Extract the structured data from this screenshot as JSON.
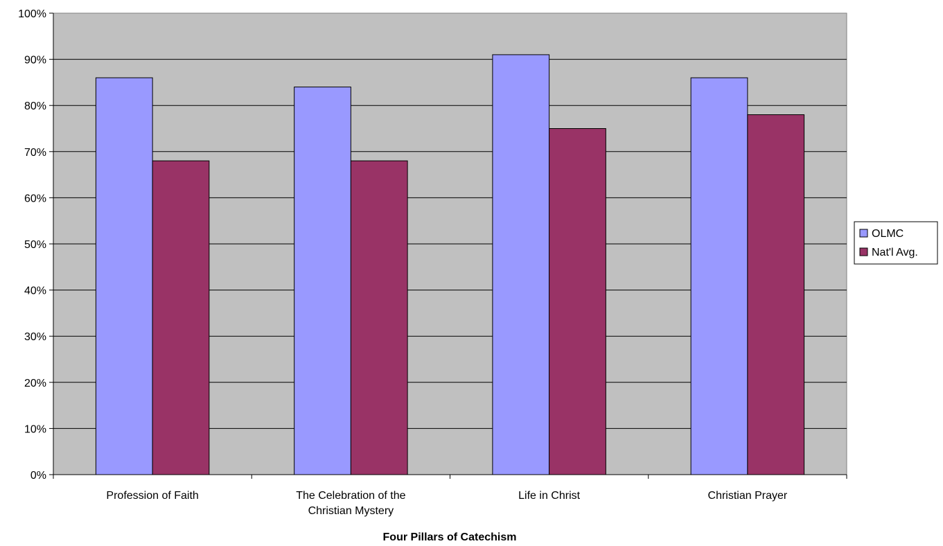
{
  "chart_data": {
    "type": "bar",
    "title": "",
    "xlabel": "Four Pillars of Catechism",
    "ylabel": "",
    "categories": [
      [
        "Profession of Faith"
      ],
      [
        "The Celebration of the",
        "Christian Mystery"
      ],
      [
        "Life in Christ"
      ],
      [
        "Christian Prayer"
      ]
    ],
    "series": [
      {
        "name": "OLMC",
        "values": [
          86,
          84,
          91,
          86
        ],
        "color": "#9999FF"
      },
      {
        "name": "Nat'l Avg.",
        "values": [
          68,
          68,
          75,
          78
        ],
        "color": "#993366"
      }
    ],
    "ylim": [
      0,
      100
    ],
    "ytick_step": 10,
    "ytick_suffix": "%",
    "grid": true,
    "plot_background": "#C0C0C0",
    "legend_position": "right"
  }
}
